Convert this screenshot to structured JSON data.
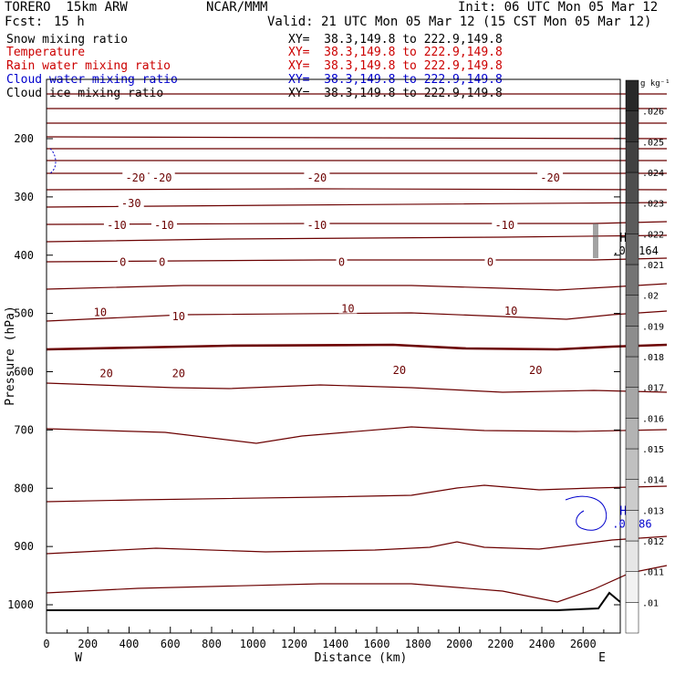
{
  "header": {
    "model": "TORERO  15km ARW",
    "center": "NCAR/MMM",
    "init": "Init: 06 UTC Mon 05 Mar 12",
    "fcst_label": "Fcst:",
    "fcst_value": "15 h",
    "valid": "Valid: 21 UTC Mon 05 Mar 12 (15 CST Mon 05 Mar 12)"
  },
  "legend": [
    {
      "name": "Snow mixing ratio",
      "color": "#000000",
      "xy": ""
    },
    {
      "name": "Temperature",
      "color": "#cc0000",
      "xy": "XY=  38.3,149.8 to 222.9,149.8"
    },
    {
      "name": "Rain water mixing ratio",
      "color": "#cc0000",
      "xy": "XY=  38.3,149.8 to 222.9,149.8"
    },
    {
      "name": "Cloud water mixing ratio",
      "color": "#0000cc",
      "xy": "XY=  38.3,149.8 to 222.9,149.8"
    },
    {
      "name": "Cloud ice mixing ratio",
      "color": "#000000",
      "xy": "XY=  38.3,149.8 to 222.9,149.8"
    }
  ],
  "snow_xy": "XY=  38.3,149.8 to 222.9,149.8",
  "chart_data": {
    "type": "contour",
    "xlabel": "Distance (km)",
    "ylabel": "Pressure (hPa)",
    "xlim": [
      0,
      2780
    ],
    "ylim": [
      1050,
      100
    ],
    "x_ticks": [
      0,
      200,
      400,
      600,
      800,
      1000,
      1200,
      1400,
      1600,
      1800,
      2000,
      2200,
      2400,
      2600
    ],
    "y_ticks": [
      200,
      300,
      400,
      500,
      600,
      700,
      800,
      900,
      1000
    ],
    "x_end_labels": {
      "left": "W",
      "right": "E"
    },
    "temperature_labels": [
      {
        "x": 410,
        "p": 311,
        "t": "-30"
      },
      {
        "x": 430,
        "p": 267,
        "t": "-20"
      },
      {
        "x": 560,
        "p": 267,
        "t": "-20"
      },
      {
        "x": 1310,
        "p": 267,
        "t": "-20"
      },
      {
        "x": 2440,
        "p": 267,
        "t": "-20"
      },
      {
        "x": 340,
        "p": 349,
        "t": "-10"
      },
      {
        "x": 570,
        "p": 349,
        "t": "-10"
      },
      {
        "x": 1310,
        "p": 349,
        "t": "-10"
      },
      {
        "x": 2220,
        "p": 349,
        "t": "-10"
      },
      {
        "x": 370,
        "p": 412,
        "t": "0"
      },
      {
        "x": 560,
        "p": 412,
        "t": "0"
      },
      {
        "x": 1430,
        "p": 412,
        "t": "0"
      },
      {
        "x": 2150,
        "p": 412,
        "t": "0"
      },
      {
        "x": 260,
        "p": 498,
        "t": "10"
      },
      {
        "x": 640,
        "p": 505,
        "t": "10"
      },
      {
        "x": 1460,
        "p": 492,
        "t": "10"
      },
      {
        "x": 2250,
        "p": 496,
        "t": "10"
      },
      {
        "x": 290,
        "p": 603,
        "t": "20"
      },
      {
        "x": 640,
        "p": 603,
        "t": "20"
      },
      {
        "x": 1710,
        "p": 598,
        "t": "20"
      },
      {
        "x": 2370,
        "p": 598,
        "t": "20"
      }
    ],
    "annotations": [
      {
        "x": 2600,
        "p": 383,
        "symbol": "H",
        "value": ".001164",
        "color": "#000000"
      },
      {
        "x": 2600,
        "p": 852,
        "symbol": "H",
        "value": ".07086",
        "color": "#0000cc"
      }
    ],
    "colorbar": {
      "unit": "g kg⁻¹",
      "ticks": [
        ".01",
        ".011",
        ".012",
        ".013",
        ".014",
        ".015",
        ".016",
        ".017",
        ".018",
        ".019",
        ".02",
        ".021",
        ".022",
        ".023",
        ".024",
        ".025",
        ".026"
      ]
    }
  }
}
